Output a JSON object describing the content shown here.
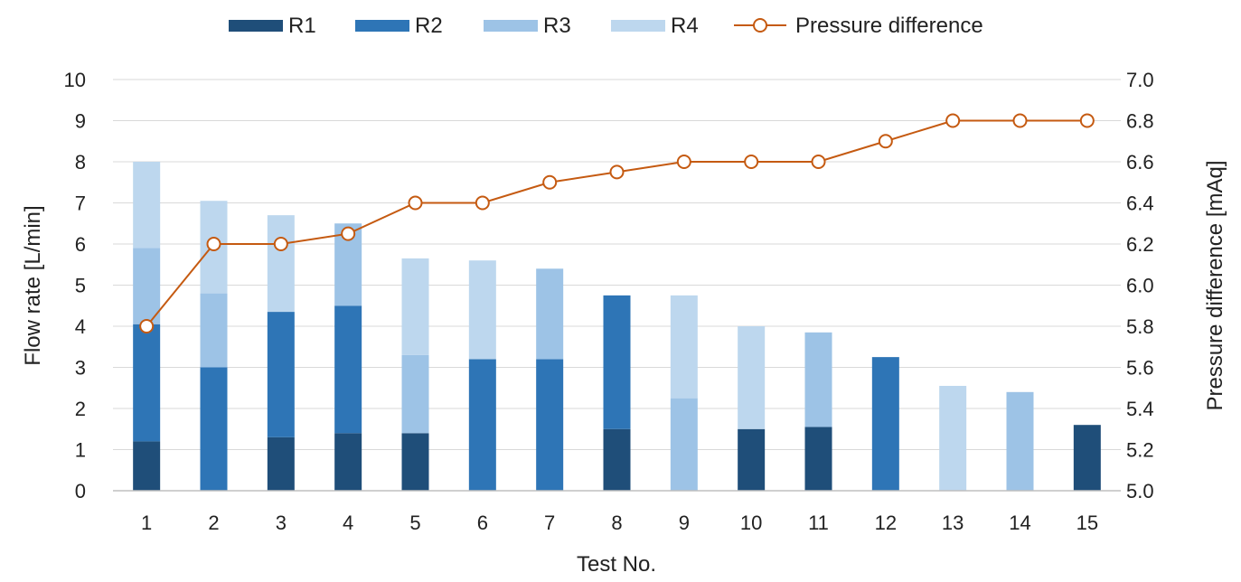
{
  "chart_data": {
    "type": "bar",
    "stacked": true,
    "categories": [
      "1",
      "2",
      "3",
      "4",
      "5",
      "6",
      "7",
      "8",
      "9",
      "10",
      "11",
      "12",
      "13",
      "14",
      "15"
    ],
    "series": [
      {
        "name": "R1",
        "color": "#1f4e79",
        "values": [
          1.2,
          0,
          1.3,
          1.4,
          1.4,
          0,
          0,
          1.5,
          0,
          1.5,
          1.55,
          0,
          0,
          0,
          1.6
        ]
      },
      {
        "name": "R2",
        "color": "#2e75b6",
        "values": [
          2.85,
          3.0,
          3.05,
          3.1,
          0,
          3.2,
          3.2,
          3.25,
          0,
          0,
          0,
          3.25,
          0,
          0,
          0
        ]
      },
      {
        "name": "R3",
        "color": "#9dc3e6",
        "values": [
          1.85,
          1.8,
          0,
          2.0,
          1.9,
          0,
          2.2,
          0,
          2.25,
          0,
          2.3,
          0,
          0,
          2.4,
          0
        ]
      },
      {
        "name": "R4",
        "color": "#bdd7ee",
        "values": [
          2.1,
          2.25,
          2.35,
          0,
          2.35,
          2.4,
          0,
          0,
          2.5,
          2.5,
          0,
          0,
          2.55,
          0,
          0
        ]
      }
    ],
    "line": {
      "name": "Pressure difference",
      "color": "#c55a11",
      "values": [
        5.8,
        6.2,
        6.2,
        6.25,
        6.4,
        6.4,
        6.5,
        6.55,
        6.6,
        6.6,
        6.6,
        6.7,
        6.8,
        6.8,
        6.8
      ]
    },
    "xlabel": "Test No.",
    "ylabel": "Flow rate  [L/min]",
    "y2label": "Pressure difference  [mAq]",
    "ylim": [
      0,
      10
    ],
    "y2lim": [
      5.0,
      7.0
    ],
    "yticks": [
      "0",
      "1",
      "2",
      "3",
      "4",
      "5",
      "6",
      "7",
      "8",
      "9",
      "10"
    ],
    "y2ticks": [
      "5.0",
      "5.2",
      "5.4",
      "5.6",
      "5.8",
      "6.0",
      "6.2",
      "6.4",
      "6.6",
      "6.8",
      "7.0"
    ],
    "grid": true,
    "legend_position": "top"
  }
}
